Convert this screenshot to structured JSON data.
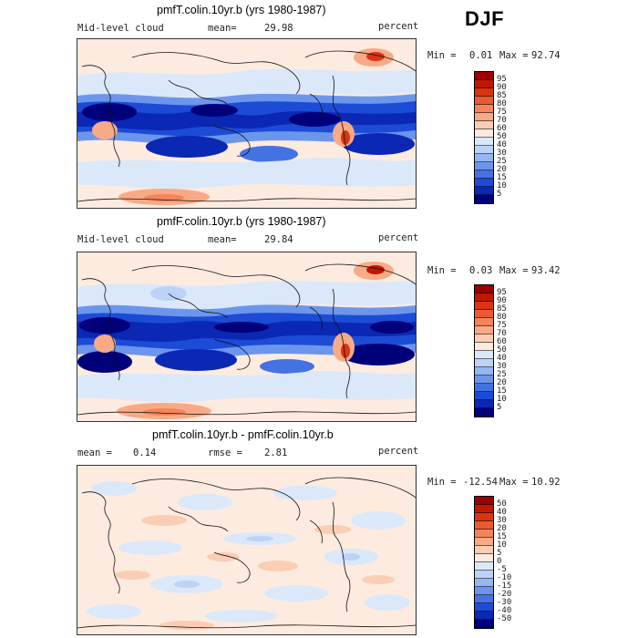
{
  "season": "DJF",
  "chart_data": [
    {
      "type": "heatmap",
      "title": "pmfT.colin.10yr.b (yrs 1980-1987)",
      "field_label": "Mid-level cloud",
      "stat_label": "mean=",
      "stat_value": "29.98",
      "units": "percent",
      "min_label": "Min =",
      "min_value": "0.01",
      "max_label": "Max =",
      "max_value": "92.74",
      "colorbar_levels": [
        "95",
        "90",
        "85",
        "80",
        "75",
        "70",
        "60",
        "50",
        "40",
        "30",
        "25",
        "20",
        "15",
        "10",
        "5"
      ],
      "colorbar_colors": [
        "#9c0000",
        "#c01800",
        "#dc3410",
        "#ec5a34",
        "#f4845e",
        "#f8aa86",
        "#fbcdb4",
        "#fdebe0",
        "#dbe8fa",
        "#bcd2f6",
        "#95b7f1",
        "#6c96ec",
        "#4472e2",
        "#1c4bd6",
        "#0a28b4",
        "#00007a"
      ]
    },
    {
      "type": "heatmap",
      "title": "pmfF.colin.10yr.b (yrs 1980-1987)",
      "field_label": "Mid-level cloud",
      "stat_label": "mean=",
      "stat_value": "29.84",
      "units": "percent",
      "min_label": "Min =",
      "min_value": "0.03",
      "max_label": "Max =",
      "max_value": "93.42",
      "colorbar_levels": [
        "95",
        "90",
        "85",
        "80",
        "75",
        "70",
        "60",
        "50",
        "40",
        "30",
        "25",
        "20",
        "15",
        "10",
        "5"
      ],
      "colorbar_colors": [
        "#9c0000",
        "#c01800",
        "#dc3410",
        "#ec5a34",
        "#f4845e",
        "#f8aa86",
        "#fbcdb4",
        "#fdebe0",
        "#dbe8fa",
        "#bcd2f6",
        "#95b7f1",
        "#6c96ec",
        "#4472e2",
        "#1c4bd6",
        "#0a28b4",
        "#00007a"
      ]
    },
    {
      "type": "heatmap",
      "title": "pmfT.colin.10yr.b - pmfF.colin.10yr.b",
      "field_label": "mean =",
      "field_value": "0.14",
      "stat_label": "rmse =",
      "stat_value": "2.81",
      "units": "percent",
      "min_label": "Min =",
      "min_value": "-12.54",
      "max_label": "Max =",
      "max_value": "10.92",
      "colorbar_levels": [
        "50",
        "40",
        "30",
        "20",
        "15",
        "10",
        "5",
        "0",
        "-5",
        "-10",
        "-15",
        "-20",
        "-30",
        "-40",
        "-50"
      ],
      "colorbar_colors": [
        "#9c0000",
        "#c01800",
        "#dc3410",
        "#ec5a34",
        "#f4845e",
        "#f8aa86",
        "#fbcdb4",
        "#fdebe0",
        "#dbe8fa",
        "#bcd2f6",
        "#95b7f1",
        "#6c96ec",
        "#4472e2",
        "#1c4bd6",
        "#0a28b4",
        "#00007a"
      ]
    }
  ]
}
